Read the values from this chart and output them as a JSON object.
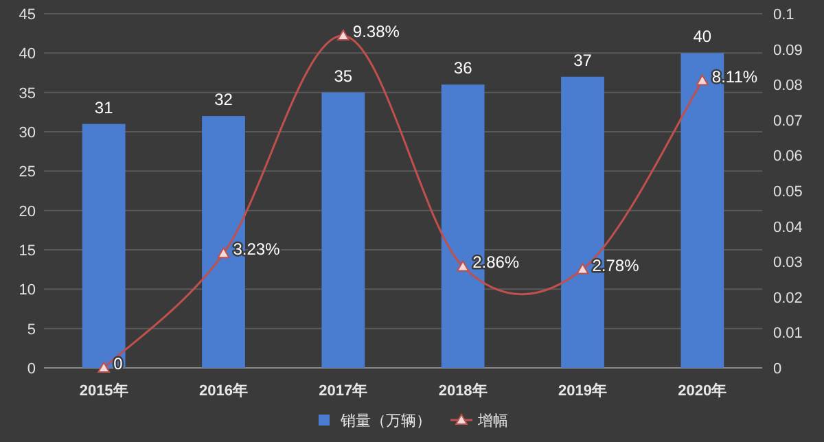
{
  "chart_data": {
    "type": "bar",
    "categories": [
      "2015年",
      "2016年",
      "2017年",
      "2018年",
      "2019年",
      "2020年"
    ],
    "series": [
      {
        "name": "销量（万辆）",
        "color": "#4a7dcf",
        "values": [
          31,
          32,
          35,
          36,
          37,
          40
        ]
      },
      {
        "name": "增幅",
        "type": "line",
        "axis": "y2",
        "color": "#c0504d",
        "values": [
          0,
          0.0323,
          0.0938,
          0.0286,
          0.0278,
          0.0811
        ],
        "value_labels": [
          "0",
          "3.23%",
          "9.38%",
          "2.86%",
          "2.78%",
          "8.11%"
        ]
      }
    ],
    "data_labels": true,
    "marker": "triangle",
    "grid": "y",
    "legend": "bottom",
    "ylim": [
      0,
      45
    ],
    "yticks": [
      0,
      5,
      10,
      15,
      20,
      25,
      30,
      35,
      40,
      45
    ],
    "y2lim": [
      0,
      0.1
    ],
    "y2ticks": [
      0,
      0.01,
      0.02,
      0.03,
      0.04,
      0.05,
      0.06,
      0.07,
      0.08,
      0.09,
      0.1
    ]
  }
}
